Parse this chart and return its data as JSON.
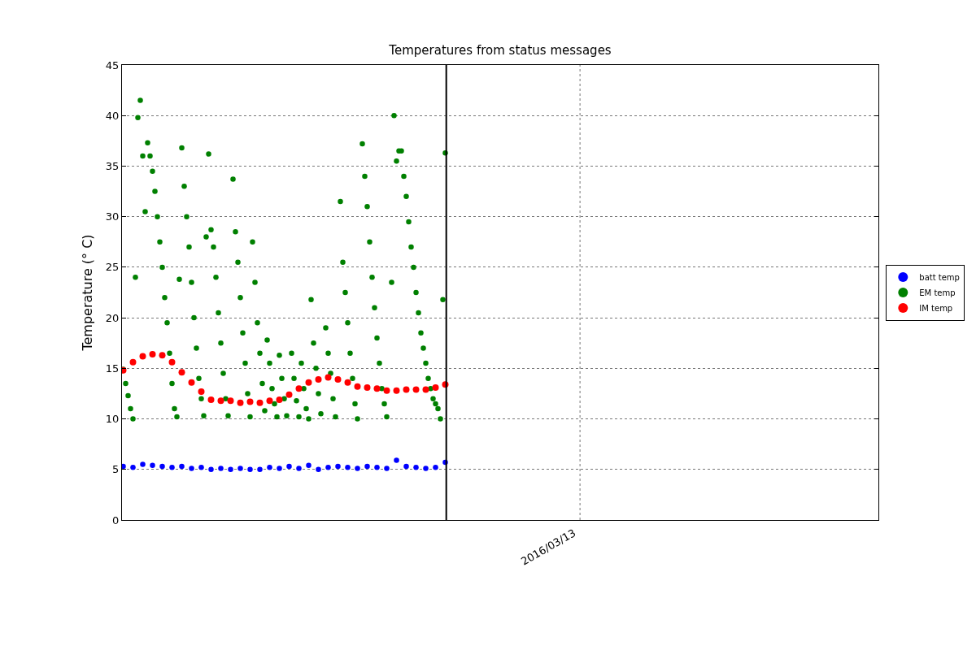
{
  "chart_data": {
    "type": "scatter",
    "title": "Temperatures from status messages",
    "ylabel": "Temperature (° C)",
    "categories": [
      null,
      null,
      null,
      null,
      null,
      null,
      null,
      null,
      null,
      null,
      null,
      null,
      null,
      null,
      null,
      null,
      null,
      null,
      null,
      null,
      null,
      null,
      null,
      null,
      null,
      null,
      null,
      null,
      null,
      null,
      null,
      null,
      null,
      null,
      null,
      null,
      null,
      null,
      null,
      null,
      null,
      null,
      null,
      null,
      null,
      null,
      null,
      null,
      null,
      null,
      null,
      null,
      null,
      null,
      null,
      null,
      null,
      null,
      null,
      null,
      null,
      null,
      null,
      null,
      null,
      null,
      null,
      null,
      null,
      null,
      null,
      null,
      null,
      null,
      null,
      null,
      null,
      null,
      null,
      null,
      null,
      null,
      null,
      null,
      null,
      null,
      null,
      null,
      null,
      null,
      null,
      null,
      null,
      null,
      null,
      null,
      null,
      null,
      null,
      null,
      null,
      null,
      null,
      null,
      null,
      null,
      null,
      null,
      null,
      null,
      null,
      null,
      null,
      null,
      null,
      null,
      null,
      null,
      null,
      null,
      null,
      null,
      null,
      null,
      null,
      null,
      null,
      null,
      null,
      null,
      null,
      null,
      null,
      null,
      null,
      null,
      null,
      null,
      null,
      null,
      null,
      null,
      null,
      null,
      null,
      null,
      null,
      null,
      null,
      null,
      null,
      null,
      null,
      null,
      null,
      null,
      null,
      null,
      null,
      null,
      null,
      null,
      null,
      null,
      null,
      null,
      null,
      null,
      null,
      null,
      null,
      null,
      null,
      null,
      null,
      null,
      null,
      null,
      null,
      null,
      null,
      null,
      null,
      null,
      null,
      null,
      null,
      null,
      null,
      null,
      null,
      null,
      null,
      null,
      null,
      null,
      null,
      null,
      null,
      null,
      null,
      null,
      null,
      null,
      null,
      null,
      null,
      null,
      null,
      null,
      null,
      null,
      null,
      null,
      null,
      null,
      null,
      null,
      null,
      null,
      null,
      null,
      null,
      null,
      null,
      null,
      null,
      null,
      null,
      null,
      null,
      null,
      null,
      null,
      null,
      null,
      null,
      null,
      null,
      null,
      null,
      null,
      null,
      null,
      null,
      null,
      null,
      null,
      null,
      null,
      null,
      null,
      null,
      null,
      null,
      null,
      null,
      null,
      null,
      null,
      null,
      null,
      null,
      null,
      null,
      null,
      null,
      null,
      null,
      null,
      null,
      null,
      null,
      null,
      null,
      null,
      null,
      null,
      null,
      null,
      null,
      null,
      null,
      null,
      null,
      null,
      null,
      null,
      null,
      null,
      null,
      null,
      null,
      null,
      null,
      null,
      null,
      null,
      null,
      null,
      null,
      null,
      null,
      null,
      null,
      null,
      null,
      null,
      null,
      null
    ],
    "series": [
      {
        "name": "batt temp",
        "color": "#0000ff",
        "values": [
          5.3,
          null,
          null,
          null,
          5.2,
          null,
          null,
          null,
          5.5,
          null,
          null,
          null,
          5.4,
          null,
          null,
          null,
          5.3,
          null,
          null,
          null,
          5.2,
          null,
          null,
          null,
          5.3,
          null,
          null,
          null,
          5.1,
          null,
          null,
          null,
          5.2,
          null,
          null,
          null,
          5.0,
          null,
          null,
          null,
          5.1,
          null,
          null,
          null,
          5.0,
          null,
          null,
          null,
          5.1,
          null,
          null,
          null,
          5.0,
          null,
          null,
          null,
          5.0,
          null,
          null,
          null,
          5.2,
          null,
          null,
          null,
          5.1,
          null,
          null,
          null,
          5.3,
          null,
          null,
          null,
          5.1,
          null,
          null,
          null,
          5.4,
          null,
          null,
          null,
          5.0,
          null,
          null,
          null,
          5.2,
          null,
          null,
          null,
          5.3,
          null,
          null,
          null,
          5.2,
          null,
          null,
          null,
          5.1,
          null,
          null,
          null,
          5.3,
          null,
          null,
          null,
          5.2,
          null,
          null,
          null,
          5.1,
          null,
          null,
          null,
          5.9,
          null,
          null,
          null,
          5.3,
          null,
          null,
          null,
          5.2,
          null,
          null,
          null,
          5.1,
          null,
          null,
          null,
          5.2,
          null,
          null,
          null,
          5.7,
          null,
          null,
          null,
          null,
          null,
          null,
          null,
          null,
          null,
          null,
          null,
          null,
          null,
          null,
          null,
          null,
          null,
          null,
          null,
          null,
          null,
          null,
          null,
          null,
          null,
          null,
          null,
          null,
          null,
          null,
          null,
          null,
          null,
          null,
          null,
          null,
          null,
          null,
          null,
          null,
          null,
          null,
          null,
          null,
          null,
          null,
          null,
          null,
          null,
          null,
          null,
          null,
          null,
          null,
          null,
          null,
          null,
          null,
          null,
          null,
          null,
          null,
          null,
          null,
          null,
          null,
          null,
          null,
          null,
          null,
          null,
          null,
          null,
          null,
          null,
          null,
          null,
          null,
          null,
          null,
          null,
          null,
          null,
          null,
          null,
          null,
          null,
          null,
          null,
          null,
          null,
          null,
          null,
          null,
          null,
          null,
          null,
          null,
          null,
          null,
          null,
          null,
          null,
          null,
          null,
          null,
          null,
          null,
          null,
          null,
          null,
          null,
          null,
          null,
          null,
          null,
          null,
          null,
          null,
          null,
          null,
          null,
          null,
          null,
          null,
          null,
          null,
          null,
          null,
          null,
          null,
          null,
          null,
          null,
          null,
          null,
          null,
          null,
          null,
          null,
          null,
          null,
          null,
          null,
          null,
          null,
          null,
          null,
          null,
          null,
          null,
          null,
          null,
          null,
          null,
          null,
          null,
          null,
          null,
          null,
          null,
          null,
          null,
          null,
          null,
          null,
          null,
          null,
          null,
          null,
          null,
          null,
          null,
          null,
          null,
          null,
          null
        ]
      },
      {
        "name": "EM temp",
        "color": "#008000",
        "values": [
          14.9,
          13.5,
          12.3,
          11.0,
          10.0,
          24.0,
          39.8,
          41.5,
          36.0,
          30.5,
          37.3,
          36.0,
          34.5,
          32.5,
          30.0,
          27.5,
          25.0,
          22.0,
          19.5,
          16.5,
          13.5,
          11.0,
          10.2,
          23.8,
          36.8,
          33.0,
          30.0,
          27.0,
          23.5,
          20.0,
          17.0,
          14.0,
          12.0,
          10.3,
          28.0,
          36.2,
          28.7,
          27.0,
          24.0,
          20.5,
          17.5,
          14.5,
          12.0,
          10.3,
          null,
          33.7,
          28.5,
          25.5,
          22.0,
          18.5,
          15.5,
          12.5,
          10.2,
          27.5,
          23.5,
          19.5,
          16.5,
          13.5,
          10.8,
          17.8,
          15.5,
          13.0,
          11.5,
          10.2,
          16.3,
          14.0,
          12.0,
          10.3,
          null,
          16.5,
          14.0,
          11.8,
          10.2,
          15.5,
          13.0,
          11.0,
          10.0,
          21.8,
          17.5,
          15.0,
          12.5,
          10.5,
          null,
          19.0,
          16.5,
          14.5,
          12.0,
          10.2,
          null,
          31.5,
          25.5,
          22.5,
          19.5,
          16.5,
          14.0,
          11.5,
          10.0,
          null,
          37.2,
          34.0,
          31.0,
          27.5,
          24.0,
          21.0,
          18.0,
          15.5,
          13.0,
          11.5,
          10.2,
          null,
          23.5,
          40.0,
          35.5,
          36.5,
          36.5,
          34.0,
          32.0,
          29.5,
          27.0,
          25.0,
          22.5,
          20.5,
          18.5,
          17.0,
          15.5,
          14.0,
          13.0,
          12.0,
          11.5,
          11.0,
          10.0,
          21.8,
          36.3,
          null,
          null,
          null,
          null,
          null,
          null,
          null,
          null,
          null,
          null,
          null,
          null,
          null,
          null,
          null,
          null,
          null,
          null,
          null,
          null,
          null,
          null,
          null,
          null,
          null,
          null,
          null,
          null,
          null,
          null,
          null,
          null,
          null,
          null,
          null,
          null,
          null,
          null,
          null,
          null,
          null,
          null,
          null,
          null,
          null,
          null,
          null,
          null,
          null,
          null,
          null,
          null,
          null,
          null,
          null,
          null,
          null,
          null,
          null,
          null,
          null,
          null,
          null,
          null,
          null,
          null,
          null,
          null,
          null,
          null,
          null,
          null,
          null,
          null,
          null,
          null,
          null,
          null,
          null,
          null,
          null,
          null,
          null,
          null,
          null,
          null,
          null,
          null,
          null,
          null,
          null,
          null,
          null,
          null,
          null,
          null,
          null,
          null,
          null,
          null,
          null,
          null,
          null,
          null,
          null,
          null,
          null,
          null,
          null,
          null,
          null,
          null,
          null,
          null,
          null,
          null,
          null,
          null,
          null,
          null,
          null,
          null,
          null,
          null,
          null,
          null,
          null,
          null,
          null,
          null,
          null,
          null,
          null,
          null,
          null,
          null,
          null,
          null,
          null,
          null,
          null,
          null,
          null,
          null,
          null,
          null,
          null,
          null,
          null,
          null,
          null,
          null,
          null,
          null,
          null,
          null,
          null,
          null,
          null,
          null,
          null,
          null,
          null,
          null,
          null,
          null,
          null,
          null,
          null,
          null,
          null,
          null,
          null,
          null,
          null,
          null,
          null
        ]
      },
      {
        "name": "IM temp",
        "color": "#ff0000",
        "values": [
          14.8,
          null,
          null,
          null,
          15.6,
          null,
          null,
          null,
          16.2,
          null,
          null,
          null,
          16.4,
          null,
          null,
          null,
          16.3,
          null,
          null,
          null,
          15.6,
          null,
          null,
          null,
          14.6,
          null,
          null,
          null,
          13.6,
          null,
          null,
          null,
          12.7,
          null,
          null,
          null,
          11.9,
          null,
          null,
          null,
          11.8,
          null,
          null,
          null,
          11.8,
          null,
          null,
          null,
          11.6,
          null,
          null,
          null,
          11.7,
          null,
          null,
          null,
          11.6,
          null,
          null,
          null,
          11.8,
          null,
          null,
          null,
          11.9,
          null,
          null,
          null,
          12.4,
          null,
          null,
          null,
          13.0,
          null,
          null,
          null,
          13.6,
          null,
          null,
          null,
          13.9,
          null,
          null,
          null,
          14.1,
          null,
          null,
          null,
          13.9,
          null,
          null,
          null,
          13.6,
          null,
          null,
          null,
          13.2,
          null,
          null,
          null,
          13.1,
          null,
          null,
          null,
          13.0,
          null,
          null,
          null,
          12.8,
          null,
          null,
          null,
          12.8,
          null,
          null,
          null,
          12.9,
          null,
          null,
          null,
          12.9,
          null,
          null,
          null,
          12.9,
          null,
          null,
          null,
          13.1,
          null,
          null,
          null,
          13.4,
          null,
          null,
          null,
          null,
          null,
          null,
          null,
          null,
          null,
          null,
          null,
          null,
          null,
          null,
          null,
          null,
          null,
          null,
          null,
          null,
          null,
          null,
          null,
          null,
          null,
          null,
          null,
          null,
          null,
          null,
          null,
          null,
          null,
          null,
          null,
          null,
          null,
          null,
          null,
          null,
          null,
          null,
          null,
          null,
          null,
          null,
          null,
          null,
          null,
          null,
          null,
          null,
          null,
          null,
          null,
          null,
          null,
          null,
          null,
          null,
          null,
          null,
          null,
          null,
          null,
          null,
          null,
          null,
          null,
          null,
          null,
          null,
          null,
          null,
          null,
          null,
          null,
          null,
          null,
          null,
          null,
          null,
          null,
          null,
          null,
          null,
          null,
          null,
          null,
          null,
          null,
          null,
          null,
          null,
          null,
          null,
          null,
          null,
          null,
          null,
          null,
          null,
          null,
          null,
          null,
          null,
          null,
          null,
          null,
          null,
          null,
          null,
          null,
          null,
          null,
          null,
          null,
          null,
          null,
          null,
          null,
          null,
          null,
          null,
          null,
          null,
          null,
          null,
          null,
          null,
          null,
          null,
          null,
          null,
          null,
          null,
          null,
          null,
          null,
          null,
          null,
          null,
          null,
          null,
          null,
          null,
          null,
          null,
          null,
          null,
          null,
          null,
          null,
          null,
          null,
          null,
          null,
          null,
          null,
          null,
          null,
          null,
          null,
          null,
          null,
          null,
          null,
          null,
          null,
          null,
          null,
          null,
          null,
          null,
          null,
          null,
          null
        ]
      }
    ],
    "ylim": [
      0,
      45
    ],
    "yticks": [
      0,
      5,
      10,
      15,
      20,
      25,
      30,
      35,
      40,
      45
    ],
    "annotations": [
      "2016/03/13"
    ],
    "grid": true,
    "legend": "right",
    "marker": "circle"
  }
}
